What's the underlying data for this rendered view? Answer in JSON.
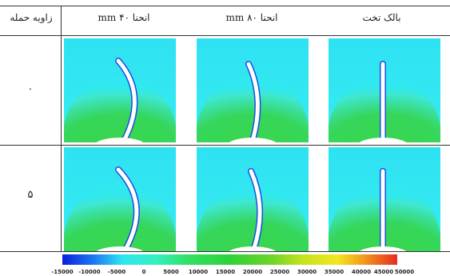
{
  "table": {
    "col_headers": {
      "angle": "زاویه حمله",
      "bend40": "انحنا  ۴۰ mm",
      "bend80": "انحنا  ۸۰ mm",
      "flat": "بالک تخت"
    },
    "rows": [
      {
        "angle_label": "۰"
      },
      {
        "angle_label": "۵"
      }
    ]
  },
  "colorbar": {
    "ticks": [
      "-15000",
      "-10000",
      "-5000",
      "0",
      "5000",
      "10000",
      "15000",
      "20000",
      "25000",
      "30000",
      "35000",
      "40000",
      "45000",
      "50000"
    ],
    "colors": [
      "#0a1fdc",
      "#1f7ef2",
      "#2ee6f2",
      "#35f0c0",
      "#32e060",
      "#2ed23a",
      "#6ad42a",
      "#c8e21e",
      "#f2e81e",
      "#f29a1e",
      "#ea2a1e"
    ]
  }
}
